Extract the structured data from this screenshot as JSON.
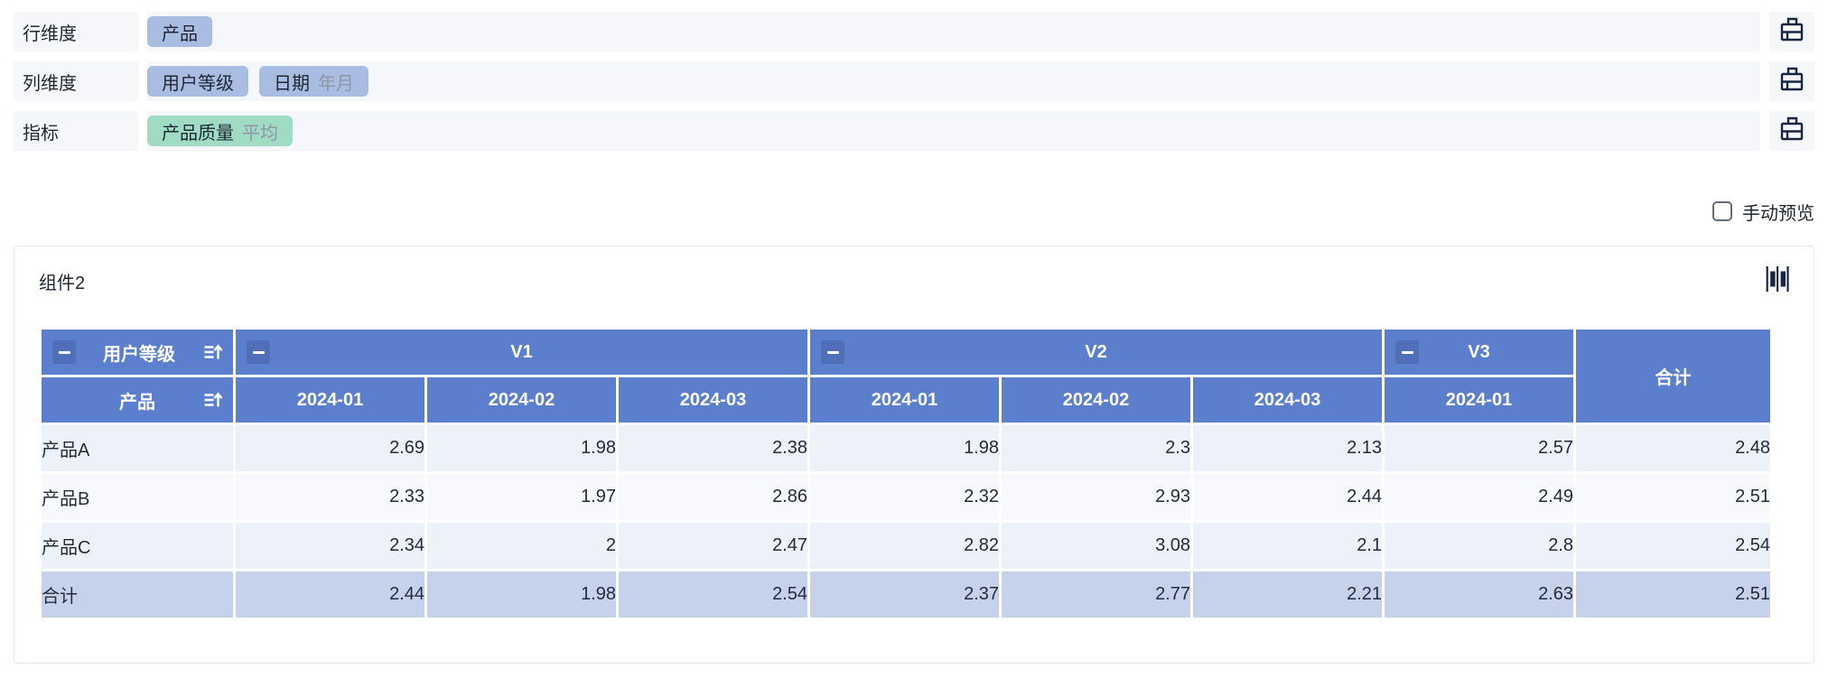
{
  "config": {
    "rows": [
      {
        "label": "行维度",
        "chips": [
          {
            "name": "产品"
          }
        ]
      },
      {
        "label": "列维度",
        "chips": [
          {
            "name": "用户等级"
          },
          {
            "name": "日期",
            "suffix": "年月"
          }
        ]
      },
      {
        "label": "指标",
        "chips": [
          {
            "name": "产品质量",
            "suffix": "平均"
          }
        ]
      }
    ],
    "clear_icon": "brush-clear-icon"
  },
  "manual_preview": {
    "label": "手动预览",
    "checked": false
  },
  "panel": {
    "title": "组件2",
    "corner_icon": "bar-chart-icon"
  },
  "table": {
    "row_dim_label": "用户等级",
    "col_dim_label": "产品",
    "collapse_icon": "collapse-minus-icon",
    "sort_icon": "sort-ascending-icon",
    "groups": [
      {
        "label": "V1",
        "cols": [
          "2024-01",
          "2024-02",
          "2024-03"
        ]
      },
      {
        "label": "V2",
        "cols": [
          "2024-01",
          "2024-02",
          "2024-03"
        ]
      },
      {
        "label": "V3",
        "cols": [
          "2024-01"
        ]
      }
    ],
    "total_label": "合计",
    "rows": [
      {
        "label": "产品A",
        "values": [
          "2.69",
          "1.98",
          "2.38",
          "1.98",
          "2.3",
          "2.13",
          "2.57",
          "2.48"
        ]
      },
      {
        "label": "产品B",
        "values": [
          "2.33",
          "1.97",
          "2.86",
          "2.32",
          "2.93",
          "2.44",
          "2.49",
          "2.51"
        ]
      },
      {
        "label": "产品C",
        "values": [
          "2.34",
          "2",
          "2.47",
          "2.82",
          "3.08",
          "2.1",
          "2.8",
          "2.54"
        ]
      }
    ],
    "total_row": {
      "label": "合计",
      "values": [
        "2.44",
        "1.98",
        "2.54",
        "2.37",
        "2.77",
        "2.21",
        "2.63",
        "2.51"
      ]
    }
  },
  "colors": {
    "header_blue": "#5b7ecd",
    "chip_blue": "#a8bde1",
    "chip_green": "#a0dcc4",
    "row_odd": "#edf1f9",
    "row_even": "#f7f9fc",
    "total_row": "#c6d2ec",
    "bar_bg": "#f6f7fa",
    "icon_dark": "#182540"
  }
}
